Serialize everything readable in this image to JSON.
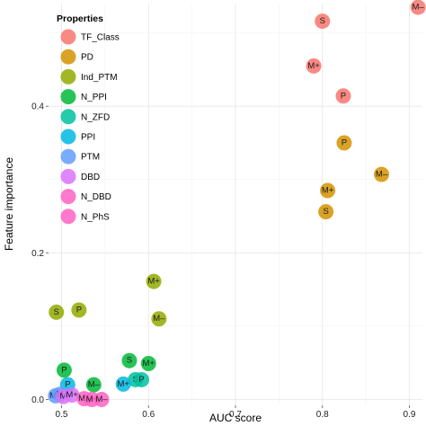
{
  "chart_data": {
    "type": "scatter",
    "title": "",
    "xlabel": "AUC score",
    "ylabel": "Feature importance",
    "xlim": [
      0.485,
      0.915
    ],
    "ylim": [
      -0.008,
      0.54
    ],
    "xticks": [
      0.5,
      0.6,
      0.7,
      0.8,
      0.9
    ],
    "xtick_labels": [
      "0.5",
      "0.6",
      "0.7",
      "0.8",
      "0.9"
    ],
    "yticks": [
      0.0,
      0.2,
      0.4
    ],
    "ytick_labels": [
      "0.0",
      "0.2",
      "0.4"
    ],
    "grid": true,
    "legend": {
      "title": "Properties",
      "placement": "top-left"
    },
    "series": [
      {
        "name": "TF_Class",
        "color": "#F8766D",
        "points": [
          {
            "x": 0.91,
            "y": 0.535,
            "label": "M–"
          },
          {
            "x": 0.8,
            "y": 0.516,
            "label": "S"
          },
          {
            "x": 0.79,
            "y": 0.455,
            "label": "M+"
          },
          {
            "x": 0.824,
            "y": 0.414,
            "label": "P"
          }
        ]
      },
      {
        "name": "PD",
        "color": "#D39200",
        "points": [
          {
            "x": 0.825,
            "y": 0.35,
            "label": "P"
          },
          {
            "x": 0.868,
            "y": 0.307,
            "label": "M–"
          },
          {
            "x": 0.806,
            "y": 0.285,
            "label": "M+"
          },
          {
            "x": 0.804,
            "y": 0.256,
            "label": "S"
          }
        ]
      },
      {
        "name": "Ind_PTM",
        "color": "#93AA00",
        "points": [
          {
            "x": 0.606,
            "y": 0.161,
            "label": "M+"
          },
          {
            "x": 0.52,
            "y": 0.122,
            "label": "P"
          },
          {
            "x": 0.494,
            "y": 0.119,
            "label": "S"
          },
          {
            "x": 0.612,
            "y": 0.11,
            "label": "M–"
          }
        ]
      },
      {
        "name": "N_PPI",
        "color": "#00BA38",
        "points": [
          {
            "x": 0.503,
            "y": 0.04,
            "label": "P"
          },
          {
            "x": 0.578,
            "y": 0.053,
            "label": "S"
          },
          {
            "x": 0.6,
            "y": 0.049,
            "label": "M+"
          },
          {
            "x": 0.537,
            "y": 0.02,
            "label": "M–"
          }
        ]
      },
      {
        "name": "N_ZFD",
        "color": "#00C19F",
        "points": [
          {
            "x": 0.585,
            "y": 0.027,
            "label": "S"
          },
          {
            "x": 0.592,
            "y": 0.027,
            "label": "P"
          }
        ]
      },
      {
        "name": "PPI",
        "color": "#00B9E3",
        "points": [
          {
            "x": 0.507,
            "y": 0.02,
            "label": "P"
          },
          {
            "x": 0.571,
            "y": 0.021,
            "label": "M+"
          }
        ]
      },
      {
        "name": "PTM",
        "color": "#619CFF",
        "points": [
          {
            "x": 0.493,
            "y": 0.005,
            "label": "M–"
          },
          {
            "x": 0.498,
            "y": 0.007,
            "label": "M"
          }
        ]
      },
      {
        "name": "DBD",
        "color": "#DB72FB",
        "points": [
          {
            "x": 0.502,
            "y": 0.004,
            "label": "M"
          },
          {
            "x": 0.512,
            "y": 0.006,
            "label": "M+"
          }
        ]
      },
      {
        "name": "N_DBD",
        "color": "#FF61C3",
        "points": [
          {
            "x": 0.526,
            "y": 0.001,
            "label": "M–"
          },
          {
            "x": 0.535,
            "y": 0.0,
            "label": "M+"
          }
        ]
      },
      {
        "name": "N_PhS",
        "color": "#FF61C3",
        "points": [
          {
            "x": 0.546,
            "y": 0.0,
            "label": "M–"
          }
        ]
      }
    ]
  }
}
